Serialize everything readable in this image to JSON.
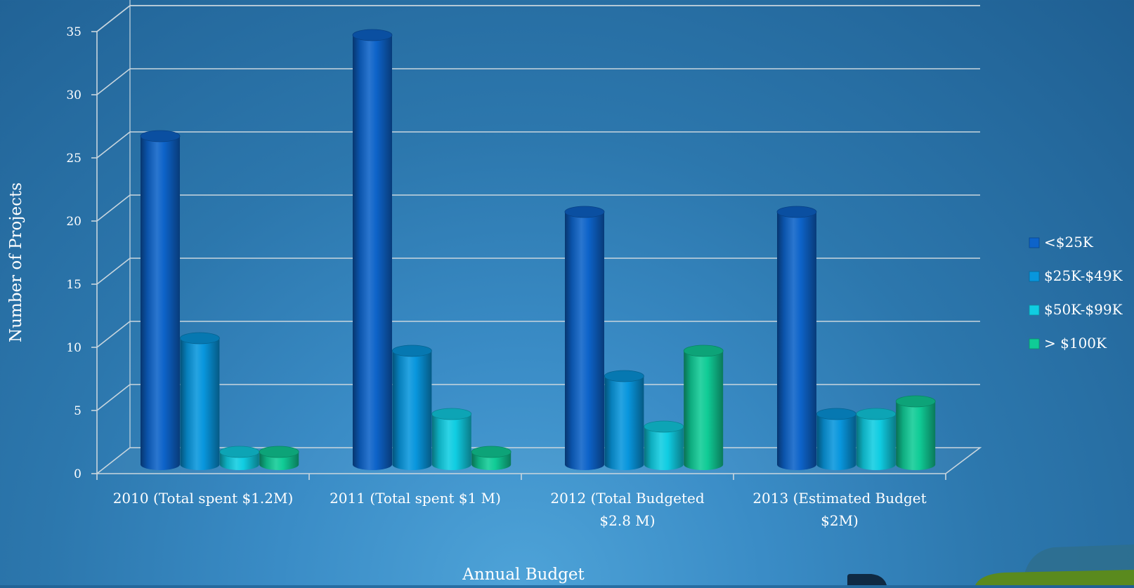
{
  "chart_data": {
    "type": "bar",
    "style": "3d-cylinder",
    "title": "",
    "xlabel": "Annual Budget",
    "ylabel": "Number of Projects",
    "ylim": [
      0,
      35
    ],
    "ytick_step": 5,
    "grid": true,
    "legend_position": "right",
    "categories": [
      [
        "2010 (Total spent $1.2M)"
      ],
      [
        "2011 (Total spent $1 M)"
      ],
      [
        "2012 (Total Budgeted",
        "$2.8 M)"
      ],
      [
        "2013 (Estimated Budget",
        "$2M)"
      ]
    ],
    "series": [
      {
        "name": "<$25K",
        "color": "#0d63c9",
        "values": [
          26,
          34,
          20,
          20
        ]
      },
      {
        "name": "$25K-$49K",
        "color": "#0896dd",
        "values": [
          10,
          9,
          7,
          4
        ]
      },
      {
        "name": "$50K-$99K",
        "color": "#10cde2",
        "values": [
          1,
          4,
          3,
          4
        ]
      },
      {
        "name": "> $100K",
        "color": "#10cc96",
        "values": [
          1,
          1,
          9,
          5
        ]
      }
    ]
  },
  "colors": {
    "background_light": "#4ea3d8",
    "background_dark": "#1f5f92",
    "gridline": "#c9d6de"
  },
  "decor": {
    "corner_shape_colors": [
      "#2e6f8f",
      "#5a8a1e"
    ]
  }
}
